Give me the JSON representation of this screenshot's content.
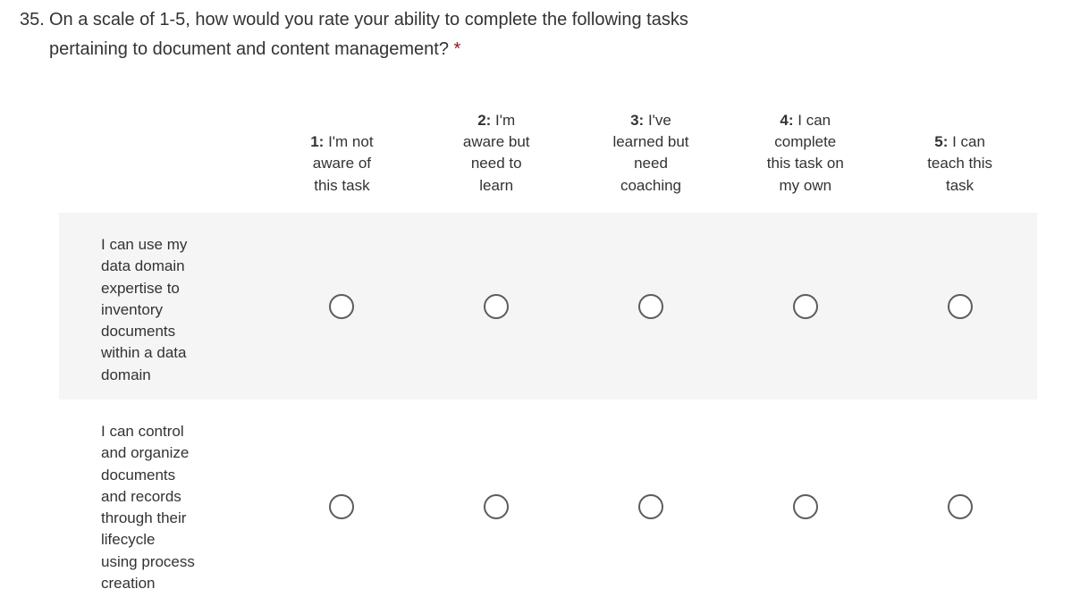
{
  "question": {
    "number": "35.",
    "title_lines": [
      "On a scale of 1-5, how would you rate your ability to complete the following tasks",
      "pertaining to document and content management?"
    ],
    "required_marker": "*"
  },
  "scale": {
    "headers": [
      {
        "prefix": "1:",
        "first_line": "I'm not",
        "rest_lines": [
          "aware of",
          "this task"
        ]
      },
      {
        "prefix": "2:",
        "first_line": "I'm",
        "rest_lines": [
          "aware but",
          "need to",
          "learn"
        ]
      },
      {
        "prefix": "3:",
        "first_line": "I've",
        "rest_lines": [
          "learned but",
          "need",
          "coaching"
        ]
      },
      {
        "prefix": "4:",
        "first_line": "I can",
        "rest_lines": [
          "complete",
          "this task on",
          "my own"
        ]
      },
      {
        "prefix": "5:",
        "first_line": "I can",
        "rest_lines": [
          "teach this",
          "task"
        ]
      }
    ],
    "rows": [
      {
        "label_lines": [
          "I can use my",
          "data domain",
          "expertise to",
          "inventory",
          "documents",
          "within a data",
          "domain"
        ]
      },
      {
        "label_lines": [
          "I can control",
          "and organize",
          "documents",
          "and records",
          "through their",
          "lifecycle",
          "using process",
          "creation"
        ]
      }
    ]
  },
  "colors": {
    "text": "#333333",
    "required": "#b10e1c",
    "row_alt_bg": "#f5f5f5",
    "radio_border": "#5c5c5c"
  }
}
